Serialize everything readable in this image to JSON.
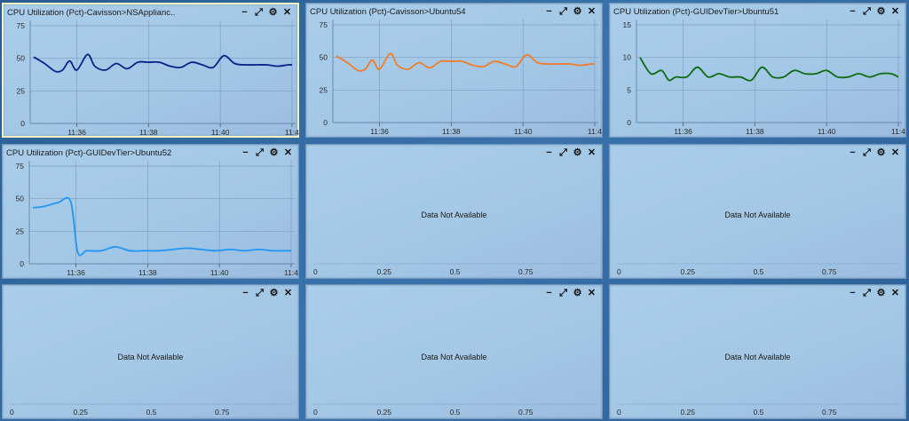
{
  "panels": [
    {
      "id": "p1",
      "title": "CPU Utilization (Pct)-Cavisson>NSApplianc..",
      "selected": true,
      "has_data": true,
      "color": "#0b1f8c"
    },
    {
      "id": "p2",
      "title": "CPU Utilization (Pct)-Cavisson>Ubuntu54",
      "selected": false,
      "has_data": true,
      "color": "#f07c2a"
    },
    {
      "id": "p3",
      "title": "CPU Utilization (Pct)-GUIDevTier>Ubuntu51",
      "selected": false,
      "has_data": true,
      "color": "#0e6b12"
    },
    {
      "id": "p4",
      "title": "CPU Utilization (Pct)-GUIDevTier>Ubuntu52",
      "selected": false,
      "has_data": true,
      "color": "#2196f3"
    },
    {
      "id": "p5",
      "title": "",
      "selected": false,
      "has_data": false,
      "no_data_text": "Data Not Available"
    },
    {
      "id": "p6",
      "title": "",
      "selected": false,
      "has_data": false,
      "no_data_text": "Data Not Available"
    },
    {
      "id": "p7",
      "title": "",
      "selected": false,
      "has_data": false,
      "no_data_text": "Data Not Available"
    },
    {
      "id": "p8",
      "title": "",
      "selected": false,
      "has_data": false,
      "no_data_text": "Data Not Available"
    },
    {
      "id": "p9",
      "title": "",
      "selected": false,
      "has_data": false,
      "no_data_text": "Data Not Available"
    }
  ],
  "panel_buttons": {
    "minimize": "−",
    "expand": "⤢",
    "settings": "⚙",
    "close": "✕"
  },
  "chart_data": [
    {
      "panel": "p1",
      "type": "line",
      "title": "CPU Utilization (Pct)-Cavisson>NSApplianc..",
      "xlim": [
        34.7,
        42.1
      ],
      "ylim": [
        0,
        75
      ],
      "yticks": [
        0,
        25,
        50,
        75
      ],
      "xtick_values": [
        36,
        38,
        40,
        42
      ],
      "xtick_labels": [
        "11:36",
        "11:38",
        "11:40",
        "11:4"
      ],
      "x": [
        34.8,
        35.1,
        35.4,
        35.6,
        35.8,
        36.0,
        36.3,
        36.5,
        36.8,
        37.1,
        37.4,
        37.7,
        38.0,
        38.3,
        38.6,
        38.9,
        39.2,
        39.5,
        39.8,
        40.1,
        40.4,
        40.7,
        41.0,
        41.3,
        41.6,
        41.9,
        42.0
      ],
      "y": [
        51,
        46,
        40,
        41,
        48,
        41,
        53,
        44,
        41,
        46,
        42,
        47,
        47,
        47,
        44,
        43,
        47,
        45,
        43,
        52,
        46,
        45,
        45,
        45,
        44,
        45,
        45
      ]
    },
    {
      "panel": "p2",
      "type": "line",
      "title": "CPU Utilization (Pct)-Cavisson>Ubuntu54",
      "xlim": [
        34.7,
        42.1
      ],
      "ylim": [
        0,
        75
      ],
      "yticks": [
        0,
        25,
        50,
        75
      ],
      "xtick_values": [
        36,
        38,
        40,
        42
      ],
      "xtick_labels": [
        "11:36",
        "11:38",
        "11:40",
        "11:4"
      ],
      "x": [
        34.8,
        35.1,
        35.4,
        35.6,
        35.8,
        36.0,
        36.3,
        36.5,
        36.8,
        37.1,
        37.4,
        37.7,
        38.0,
        38.3,
        38.6,
        38.9,
        39.2,
        39.5,
        39.8,
        40.1,
        40.4,
        40.7,
        41.0,
        41.3,
        41.6,
        41.9,
        42.0
      ],
      "y": [
        51,
        46,
        40,
        41,
        48,
        41,
        53,
        44,
        41,
        46,
        42,
        47,
        47,
        47,
        44,
        43,
        47,
        45,
        43,
        52,
        46,
        45,
        45,
        45,
        44,
        45,
        45
      ]
    },
    {
      "panel": "p3",
      "type": "line",
      "title": "CPU Utilization (Pct)-GUIDevTier>Ubuntu51",
      "xlim": [
        34.7,
        42.1
      ],
      "ylim": [
        0,
        15
      ],
      "yticks": [
        0,
        5,
        10,
        15
      ],
      "xtick_values": [
        36,
        38,
        40,
        42
      ],
      "xtick_labels": [
        "11:36",
        "11:38",
        "11:40",
        "11:4"
      ],
      "x": [
        34.8,
        35.1,
        35.4,
        35.6,
        35.8,
        36.1,
        36.4,
        36.7,
        37.0,
        37.3,
        37.6,
        37.9,
        38.2,
        38.5,
        38.8,
        39.1,
        39.4,
        39.7,
        40.0,
        40.3,
        40.6,
        40.9,
        41.2,
        41.5,
        41.8,
        42.0
      ],
      "y": [
        10,
        7.5,
        8,
        6.5,
        7,
        7,
        8.5,
        7,
        7.5,
        7,
        7,
        6.5,
        8.5,
        7,
        7,
        8,
        7.5,
        7.5,
        8,
        7,
        7,
        7.5,
        7,
        7.5,
        7.5,
        7
      ]
    },
    {
      "panel": "p4",
      "type": "line",
      "title": "CPU Utilization (Pct)-GUIDevTier>Ubuntu52",
      "xlim": [
        34.7,
        42.1
      ],
      "ylim": [
        0,
        75
      ],
      "yticks": [
        0,
        25,
        50,
        75
      ],
      "xtick_values": [
        36,
        38,
        40,
        42
      ],
      "xtick_labels": [
        "11:36",
        "11:38",
        "11:40",
        "11:4"
      ],
      "x": [
        34.8,
        35.1,
        35.5,
        35.85,
        36.05,
        36.3,
        36.7,
        37.1,
        37.5,
        37.9,
        38.3,
        38.7,
        39.1,
        39.5,
        39.9,
        40.3,
        40.7,
        41.1,
        41.5,
        41.9,
        42.0
      ],
      "y": [
        43,
        44,
        47,
        48,
        9,
        10,
        10,
        13,
        10,
        10,
        10,
        11,
        12,
        11,
        10,
        11,
        10,
        11,
        10,
        10,
        10
      ]
    },
    {
      "panel": "p5",
      "type": "line",
      "xlim": [
        0,
        1
      ],
      "xtick_values": [
        0,
        0.25,
        0.5,
        0.75
      ],
      "xtick_labels": [
        "0",
        "0.25",
        "0.5",
        "0.75"
      ]
    },
    {
      "panel": "p6",
      "type": "line",
      "xlim": [
        0,
        1
      ],
      "xtick_values": [
        0,
        0.25,
        0.5,
        0.75
      ],
      "xtick_labels": [
        "0",
        "0.25",
        "0.5",
        "0.75"
      ]
    },
    {
      "panel": "p7",
      "type": "line",
      "xlim": [
        0,
        1
      ],
      "xtick_values": [
        0,
        0.25,
        0.5,
        0.75
      ],
      "xtick_labels": [
        "0",
        "0.25",
        "0.5",
        "0.75"
      ]
    },
    {
      "panel": "p8",
      "type": "line",
      "xlim": [
        0,
        1
      ],
      "xtick_values": [
        0,
        0.25,
        0.5,
        0.75
      ],
      "xtick_labels": [
        "0",
        "0.25",
        "0.5",
        "0.75"
      ]
    },
    {
      "panel": "p9",
      "type": "line",
      "xlim": [
        0,
        1
      ],
      "xtick_values": [
        0,
        0.25,
        0.5,
        0.75
      ],
      "xtick_labels": [
        "0",
        "0.25",
        "0.5",
        "0.75"
      ]
    }
  ]
}
